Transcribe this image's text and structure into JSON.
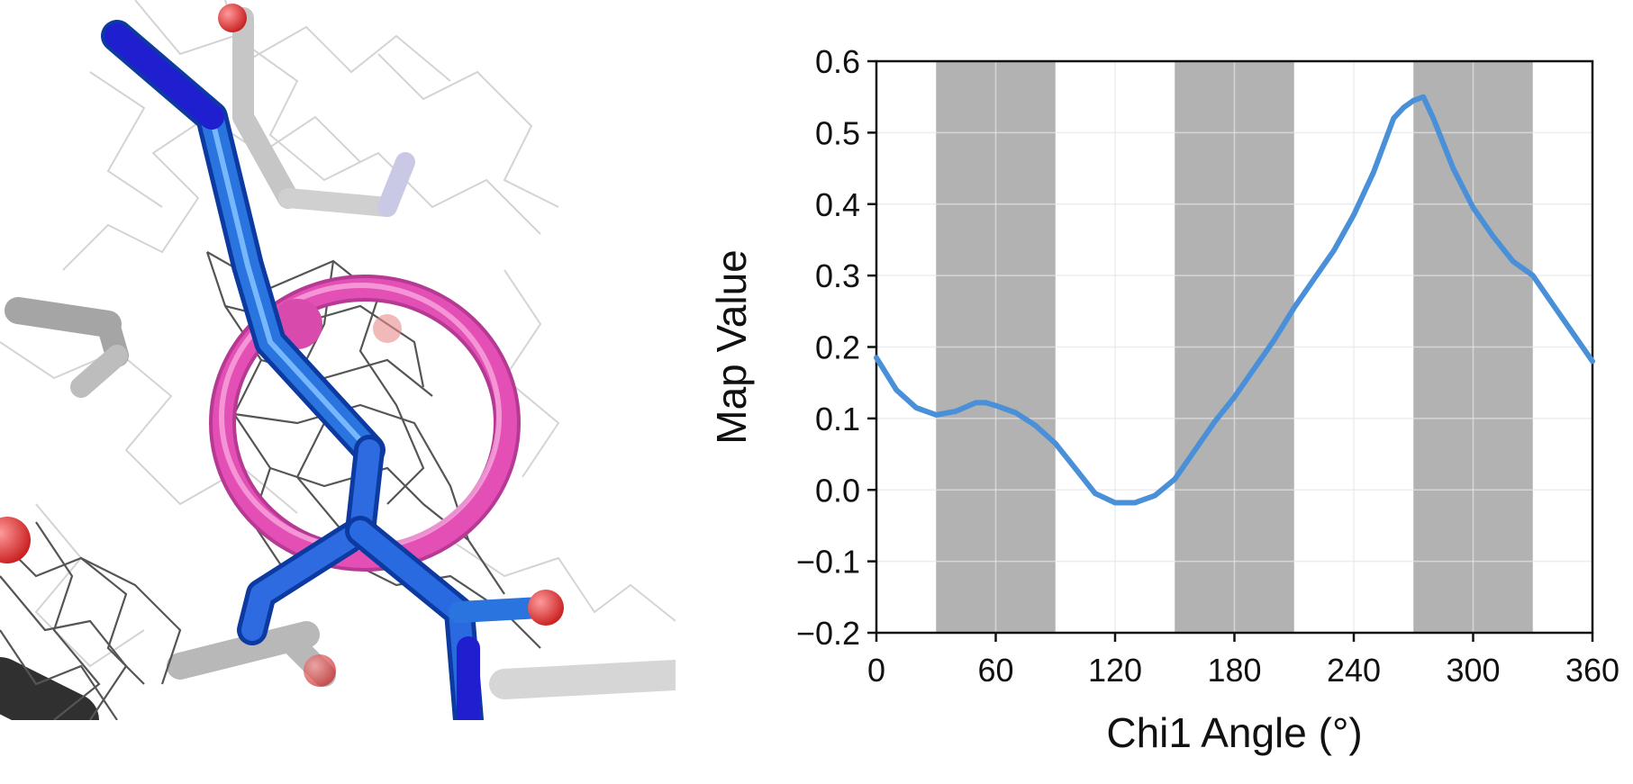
{
  "colors": {
    "line": "#4a90d9",
    "band": "#b2b2b2",
    "grid": "#e6e6e6",
    "axis": "#111111",
    "ring": "#e44fb5",
    "side_chain": "#2a74e0",
    "nitrogen": "#1f1fcf",
    "oxygen": "#e03a3a",
    "mesh": "#555555"
  },
  "figure": {
    "left_panel": "molecular-structure-render",
    "right_panel": "chi1-map-value-plot"
  },
  "chart_data": {
    "type": "line",
    "xlabel": "Chi1 Angle (°)",
    "ylabel": "Map Value",
    "xlim": [
      0,
      360
    ],
    "ylim": [
      -0.2,
      0.6
    ],
    "xticks": [
      0,
      60,
      120,
      180,
      240,
      300,
      360
    ],
    "yticks": [
      -0.2,
      -0.1,
      0.0,
      0.1,
      0.2,
      0.3,
      0.4,
      0.5,
      0.6
    ],
    "ytick_labels": [
      "−0.2",
      "−0.1",
      "0.0",
      "0.1",
      "0.2",
      "0.3",
      "0.4",
      "0.5",
      "0.6"
    ],
    "grid": true,
    "shaded_ranges": [
      [
        30,
        90
      ],
      [
        150,
        210
      ],
      [
        270,
        330
      ]
    ],
    "series": [
      {
        "x": [
          0,
          10,
          20,
          30,
          40,
          50,
          55,
          60,
          70,
          80,
          90,
          100,
          110,
          120,
          130,
          140,
          150,
          160,
          170,
          180,
          190,
          200,
          210,
          220,
          230,
          240,
          250,
          260,
          265,
          270,
          275,
          280,
          290,
          300,
          310,
          320,
          330,
          340,
          350,
          360
        ],
        "y": [
          0.185,
          0.14,
          0.115,
          0.105,
          0.11,
          0.122,
          0.122,
          0.118,
          0.108,
          0.09,
          0.065,
          0.03,
          -0.005,
          -0.018,
          -0.018,
          -0.008,
          0.015,
          0.055,
          0.095,
          0.13,
          0.17,
          0.21,
          0.255,
          0.295,
          0.335,
          0.385,
          0.445,
          0.52,
          0.535,
          0.545,
          0.55,
          0.52,
          0.45,
          0.395,
          0.355,
          0.32,
          0.3,
          0.26,
          0.22,
          0.18
        ]
      }
    ]
  }
}
